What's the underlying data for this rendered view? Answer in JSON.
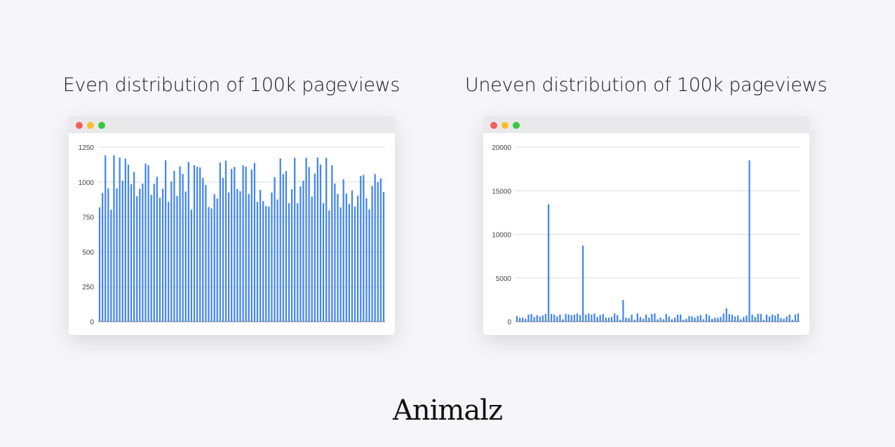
{
  "colors": {
    "bar": "#4285f4",
    "grid": "#dcdcdc",
    "close": "#f25f58",
    "minimize": "#fbbe2e",
    "maximize": "#3ac73f"
  },
  "logo": "Animalz",
  "chart_data": [
    {
      "type": "bar",
      "title": "Even distribution of 100k pageviews",
      "ylim": [
        0,
        1250
      ],
      "yticks": [
        0,
        250,
        500,
        750,
        1000,
        1250
      ],
      "grid": true,
      "values": [
        819,
        922,
        1191,
        955,
        802,
        1191,
        955,
        1176,
        1008,
        1168,
        1125,
        984,
        1073,
        898,
        952,
        989,
        1132,
        1120,
        908,
        987,
        1038,
        887,
        952,
        1156,
        858,
        1004,
        1080,
        900,
        1112,
        1058,
        932,
        1144,
        802,
        1120,
        1109,
        1105,
        1030,
        979,
        821,
        811,
        914,
        882,
        1139,
        1030,
        1154,
        925,
        1094,
        1109,
        949,
        934,
        1120,
        1110,
        914,
        1090,
        1136,
        858,
        944,
        863,
        828,
        824,
        925,
        1035,
        875,
        1169,
        1057,
        1078,
        848,
        949,
        1173,
        848,
        969,
        1009,
        1173,
        1107,
        895,
        1060,
        1176,
        1125,
        848,
        1173,
        797,
        1120,
        989,
        915,
        818,
        1019,
        918,
        843,
        939,
        824,
        902,
        1043,
        1051,
        883,
        804,
        972,
        1057,
        999,
        1025,
        929
      ]
    },
    {
      "type": "bar",
      "title": "Uneven distribution of 100k pageviews",
      "ylim": [
        0,
        20000
      ],
      "yticks": [
        0,
        5000,
        10000,
        15000,
        20000
      ],
      "grid": true,
      "values": [
        640,
        453,
        453,
        320,
        800,
        880,
        533,
        747,
        587,
        693,
        880,
        13440,
        880,
        800,
        587,
        800,
        267,
        880,
        800,
        747,
        800,
        933,
        747,
        8720,
        800,
        933,
        800,
        933,
        533,
        747,
        880,
        453,
        453,
        533,
        933,
        747,
        213,
        2480,
        453,
        400,
        800,
        213,
        933,
        533,
        320,
        800,
        453,
        880,
        933,
        267,
        453,
        267,
        880,
        587,
        267,
        453,
        800,
        800,
        213,
        320,
        640,
        587,
        453,
        640,
        747,
        267,
        880,
        693,
        320,
        453,
        453,
        533,
        933,
        1520,
        880,
        800,
        587,
        693,
        267,
        533,
        693,
        18480,
        800,
        533,
        880,
        880,
        213,
        800,
        587,
        800,
        693,
        880,
        400,
        320,
        587,
        800,
        213,
        800,
        933
      ]
    }
  ]
}
